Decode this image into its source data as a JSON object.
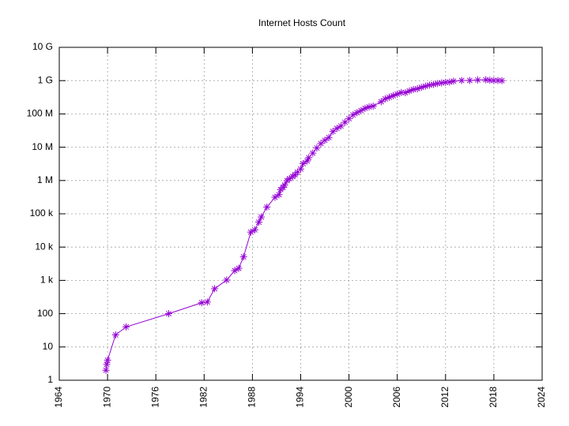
{
  "chart_data": {
    "type": "line",
    "title": "Internet Hosts Count",
    "log_y": true,
    "grid": true,
    "color": "#9400d3",
    "marker": "asterisk",
    "xlim": [
      1964,
      2024
    ],
    "xticks": [
      1964,
      1970,
      1976,
      1982,
      1988,
      1994,
      2000,
      2006,
      2012,
      2018,
      2024
    ],
    "ylim": [
      1,
      10000000000
    ],
    "yticks": [
      1,
      10,
      100,
      {
        "value": 1000,
        "label": "1 k"
      },
      {
        "value": 10000,
        "label": "10 k"
      },
      {
        "value": 100000,
        "label": "100 k"
      },
      {
        "value": 1000000,
        "label": "1 M"
      },
      {
        "value": 10000000,
        "label": "10 M"
      },
      {
        "value": 100000000,
        "label": "100 M"
      },
      {
        "value": 1000000000,
        "label": "1 G"
      },
      {
        "value": 10000000000,
        "label": "10 G"
      }
    ],
    "x": [
      1969.8,
      1969.9,
      1970,
      1971,
      1972.3,
      1977.6,
      1981.7,
      1982.4,
      1983.3,
      1984.8,
      1985.8,
      1986.3,
      1986.9,
      1987.8,
      1988.3,
      1988.8,
      1989.1,
      1989.8,
      1990.8,
      1991.3,
      1991.5,
      1991.8,
      1992.0,
      1992.3,
      1992.6,
      1993.0,
      1993.3,
      1993.6,
      1994.0,
      1994.3,
      1994.8,
      1995.0,
      1995.5,
      1996.0,
      1996.5,
      1997.0,
      1997.5,
      1998.0,
      1998.5,
      1999.0,
      1999.5,
      2000.0,
      2000.5,
      2001.0,
      2001.5,
      2002.0,
      2002.5,
      2003.0,
      2004.0,
      2004.5,
      2005.0,
      2005.5,
      2006.0,
      2006.5,
      2007.0,
      2007.5,
      2008.0,
      2008.5,
      2009.0,
      2009.5,
      2010.0,
      2010.5,
      2011.0,
      2011.5,
      2012.0,
      2012.5,
      2013.0,
      2014.0,
      2015.0,
      2016.0,
      2017.0,
      2017.5,
      2018.0,
      2018.5,
      2019.0
    ],
    "values": [
      2,
      3,
      4,
      23,
      40,
      100,
      213,
      224,
      562,
      1024,
      1961,
      2308,
      5089,
      28174,
      33000,
      56000,
      80000,
      159000,
      313000,
      376000,
      535000,
      617000,
      727000,
      992000,
      1136000,
      1313000,
      1486000,
      1776000,
      2217000,
      3212000,
      3864000,
      4852000,
      6642000,
      9472000,
      12881000,
      16146000,
      19540000,
      29670000,
      36739000,
      43230000,
      56218000,
      72398000,
      93047000,
      109574000,
      125888000,
      147344000,
      162128000,
      171638000,
      233101000,
      285139000,
      317646000,
      353284000,
      394991000,
      439286000,
      433193000,
      489774000,
      541677000,
      570937000,
      625226000,
      681064000,
      732740000,
      768913000,
      818374000,
      849869000,
      888239000,
      908585000,
      963518000,
      1010251000,
      1012706000,
      1048766000,
      1062660000,
      1028000000,
      1014000000,
      1010000000,
      1000000000
    ]
  }
}
